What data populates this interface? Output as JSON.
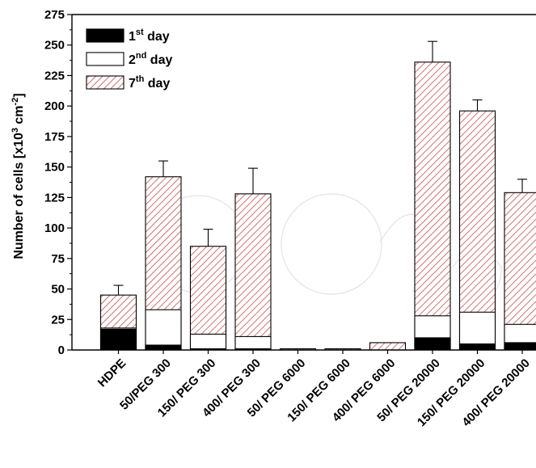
{
  "chart_data": {
    "type": "bar",
    "stacked": true,
    "categories": [
      "HDPE",
      "50/PEG 300",
      "150/ PEG 300",
      "400/ PEG 300",
      "50/ PEG 6000",
      "150/ PEG 6000",
      "400/ PEG 6000",
      "50/ PEG 20000",
      "150/ PEG 20000",
      "400/ PEG 20000"
    ],
    "series": [
      {
        "name": "1st day",
        "fill": "solid-black",
        "values": [
          17,
          4,
          1,
          1,
          0,
          0,
          0,
          10,
          5,
          6
        ]
      },
      {
        "name": "2nd day",
        "fill": "white",
        "values": [
          18,
          33,
          13,
          11,
          0,
          0,
          0,
          28,
          31,
          21
        ]
      },
      {
        "name": "7th day",
        "fill": "red-diagonal-hatch",
        "values": [
          45,
          142,
          85,
          128,
          1,
          1,
          6,
          236,
          196,
          129
        ]
      }
    ],
    "error_bars": [
      53,
      155,
      99,
      149,
      null,
      null,
      null,
      253,
      205,
      140
    ],
    "ylabel": "Number of cells [x10³ cm⁻²]",
    "ylabel_parts": {
      "main": "Number of cells [x10",
      "sup1": "3",
      "mid": " cm",
      "sup2": "-2",
      "end": "]"
    },
    "xlabel": "",
    "ylim": [
      0,
      275
    ],
    "y_ticks": [
      0,
      25,
      50,
      75,
      100,
      125,
      150,
      175,
      200,
      225,
      250,
      275
    ],
    "legend": {
      "placement": "top-left",
      "entries": [
        {
          "base": "1",
          "sup": "st",
          "rest": " day"
        },
        {
          "base": "2",
          "sup": "nd",
          "rest": " day"
        },
        {
          "base": "7",
          "sup": "th",
          "rest": " day"
        }
      ]
    },
    "grid": false,
    "colors": {
      "hatch": "#c0504d",
      "solid": "#000000",
      "outline": "#000000"
    }
  }
}
